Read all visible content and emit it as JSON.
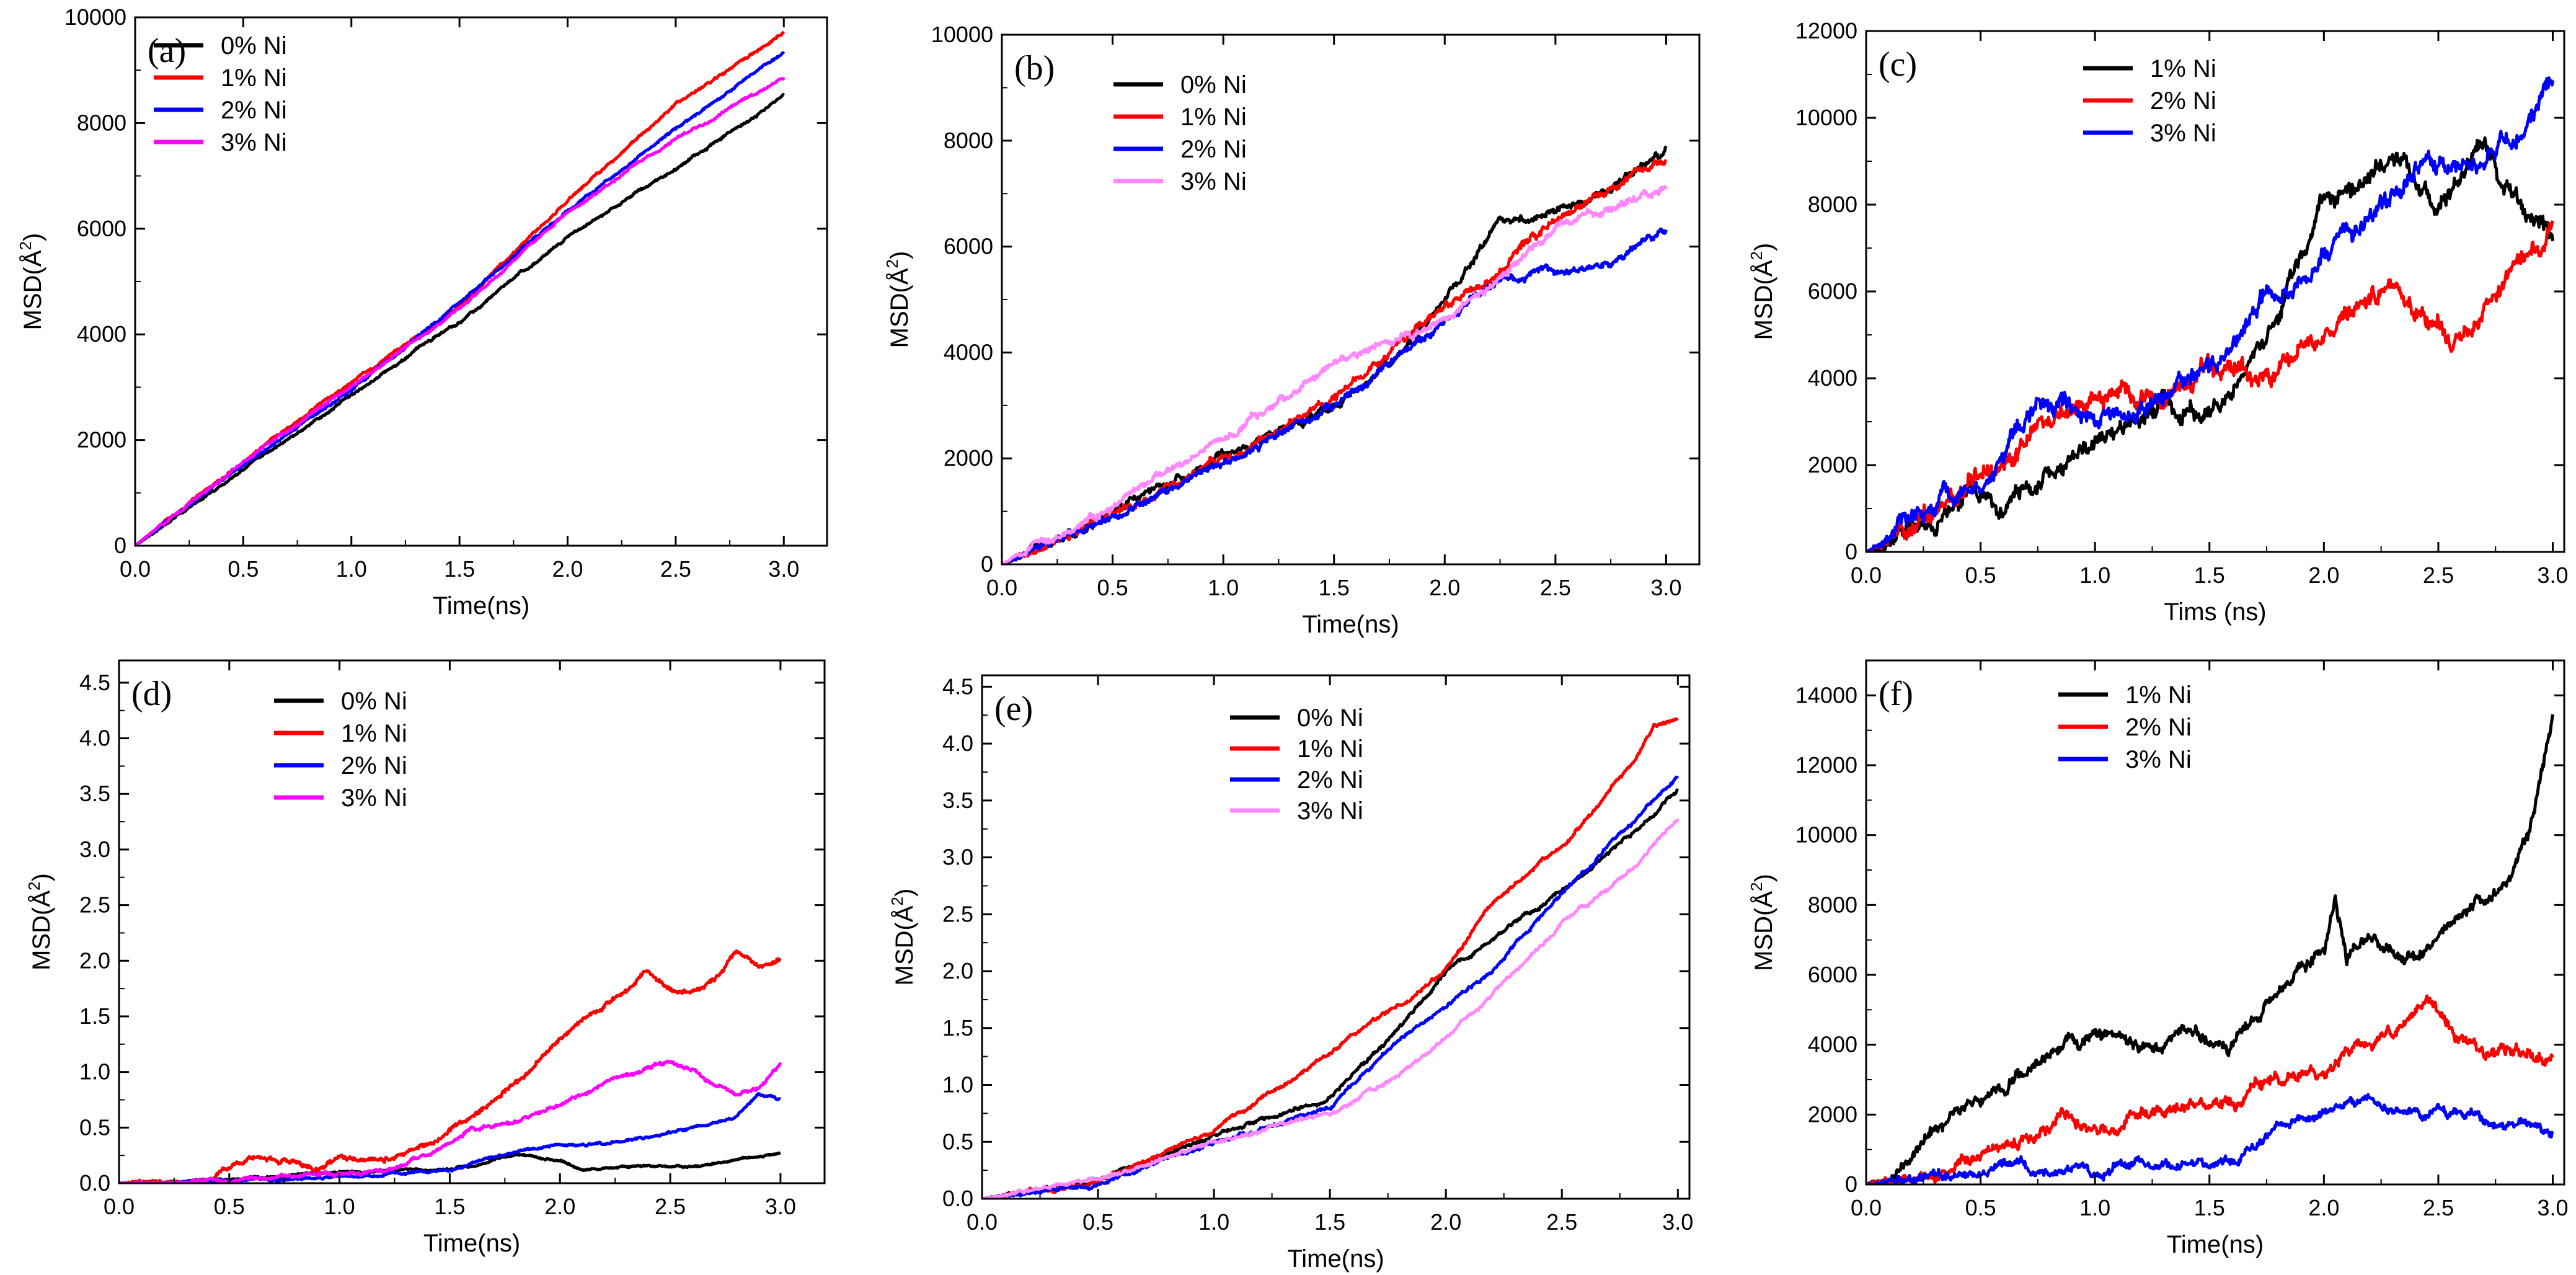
{
  "figure": {
    "panel_count": 6
  },
  "chart_data": [
    {
      "id": "a",
      "type": "line",
      "panel_label": "(a)",
      "xlabel": "Time(ns)",
      "ylabel_base": "MSD(Å",
      "ylabel_sup": "2",
      "ylabel_close": ")",
      "xlim": [
        0,
        3.2
      ],
      "ylim": [
        0,
        10000
      ],
      "xticks": [
        0,
        0.5,
        1,
        1.5,
        2,
        2.5,
        3
      ],
      "xtick_labels": [
        "0.0",
        "0.5",
        "1.0",
        "1.5",
        "2.0",
        "2.5",
        "3.0"
      ],
      "yticks": [
        0,
        2000,
        4000,
        6000,
        8000,
        10000
      ],
      "ytick_labels": [
        "0",
        "2000",
        "4000",
        "6000",
        "8000",
        "10000"
      ],
      "legend_position": "top-left",
      "series": [
        {
          "name": "0% Ni",
          "color": "#000000",
          "noise": 0.004,
          "x": [
            0,
            0.5,
            1.0,
            1.5,
            2.0,
            2.5,
            3.0
          ],
          "y": [
            0,
            1450,
            2850,
            4250,
            5850,
            7150,
            8500
          ]
        },
        {
          "name": "1% Ni",
          "color": "#ff0000",
          "noise": 0.004,
          "x": [
            0,
            0.5,
            1.0,
            1.5,
            2.0,
            2.5,
            3.0
          ],
          "y": [
            0,
            1600,
            3100,
            4500,
            6550,
            8350,
            9700
          ]
        },
        {
          "name": "2% Ni",
          "color": "#0000ff",
          "noise": 0.004,
          "x": [
            0,
            0.5,
            1.0,
            1.5,
            2.0,
            2.5,
            3.0
          ],
          "y": [
            0,
            1550,
            2950,
            4600,
            6350,
            7900,
            9350
          ]
        },
        {
          "name": "3% Ni",
          "color": "#ff00ff",
          "noise": 0.004,
          "x": [
            0,
            0.5,
            1.0,
            1.5,
            2.0,
            2.5,
            3.0
          ],
          "y": [
            0,
            1600,
            3000,
            4500,
            6300,
            7700,
            8850
          ]
        }
      ]
    },
    {
      "id": "b",
      "type": "line",
      "panel_label": "(b)",
      "xlabel": "Time(ns)",
      "ylabel_base": "MSD(Å",
      "ylabel_sup": "2",
      "ylabel_close": ")",
      "xlim": [
        0,
        3.15
      ],
      "ylim": [
        0,
        10000
      ],
      "xticks": [
        0,
        0.5,
        1,
        1.5,
        2,
        2.5,
        3
      ],
      "xtick_labels": [
        "0.0",
        "0.5",
        "1.0",
        "1.5",
        "2.0",
        "2.5",
        "3.0"
      ],
      "yticks": [
        0,
        2000,
        4000,
        6000,
        8000,
        10000
      ],
      "ytick_labels": [
        "0",
        "2000",
        "4000",
        "6000",
        "8000",
        "10000"
      ],
      "legend_position": "top-left",
      "series": [
        {
          "name": "0% Ni",
          "color": "#000000",
          "noise": 0.012,
          "x": [
            0,
            0.5,
            1.0,
            1.5,
            1.8,
            2.0,
            2.25,
            2.5,
            2.75,
            3.0
          ],
          "y": [
            0,
            1000,
            2000,
            3000,
            4000,
            5000,
            6500,
            6600,
            7100,
            7800
          ]
        },
        {
          "name": "1% Ni",
          "color": "#ff0000",
          "noise": 0.012,
          "x": [
            0,
            0.5,
            1.0,
            1.5,
            2.0,
            2.25,
            2.5,
            3.0
          ],
          "y": [
            0,
            900,
            2000,
            3100,
            4900,
            5600,
            6500,
            7600
          ]
        },
        {
          "name": "2% Ni",
          "color": "#0000ff",
          "noise": 0.012,
          "x": [
            0,
            0.5,
            1.0,
            1.5,
            2.0,
            2.25,
            2.5,
            2.75,
            3.0
          ],
          "y": [
            0,
            900,
            1950,
            3000,
            4600,
            5400,
            5500,
            5700,
            6300
          ]
        },
        {
          "name": "3% Ni",
          "color": "#ff88ff",
          "noise": 0.012,
          "x": [
            0,
            0.5,
            1.0,
            1.5,
            2.0,
            2.5,
            3.0
          ],
          "y": [
            0,
            1100,
            2400,
            3800,
            4600,
            6300,
            7200
          ]
        }
      ]
    },
    {
      "id": "c",
      "type": "line",
      "panel_label": "(c)",
      "xlabel": "Tims (ns)",
      "ylabel_base": "MSD(Å",
      "ylabel_sup": "2",
      "ylabel_close": ")",
      "xlim": [
        0,
        3.05
      ],
      "ylim": [
        0,
        12000
      ],
      "xticks": [
        0,
        0.5,
        1,
        1.5,
        2,
        2.5,
        3
      ],
      "xtick_labels": [
        "0.0",
        "0.5",
        "1.0",
        "1.5",
        "2.0",
        "2.5",
        "3.0"
      ],
      "yticks": [
        0,
        2000,
        4000,
        6000,
        8000,
        10000,
        12000
      ],
      "ytick_labels": [
        "0",
        "2000",
        "4000",
        "6000",
        "8000",
        "10000",
        "12000"
      ],
      "legend_position": "top-left",
      "series": [
        {
          "name": "1% Ni",
          "color": "#000000",
          "noise": 0.03,
          "x": [
            0,
            0.3,
            0.45,
            0.6,
            0.8,
            1.0,
            1.3,
            1.5,
            1.8,
            2.0,
            2.3,
            2.5,
            2.7,
            2.85,
            3.0
          ],
          "y": [
            0,
            600,
            1500,
            900,
            1800,
            2500,
            3500,
            3100,
            5500,
            8000,
            9000,
            8000,
            9500,
            8000,
            7000
          ]
        },
        {
          "name": "2% Ni",
          "color": "#ff0000",
          "noise": 0.03,
          "x": [
            0,
            0.3,
            0.5,
            0.8,
            1.0,
            1.3,
            1.5,
            1.8,
            2.0,
            2.3,
            2.5,
            2.6,
            2.8,
            3.0
          ],
          "y": [
            0,
            800,
            1700,
            3000,
            3700,
            3500,
            4300,
            4100,
            5000,
            5900,
            5400,
            4900,
            6100,
            7400
          ]
        },
        {
          "name": "3% Ni",
          "color": "#0000ff",
          "noise": 0.03,
          "x": [
            0,
            0.3,
            0.5,
            0.75,
            0.9,
            1.1,
            1.3,
            1.5,
            1.7,
            2.0,
            2.3,
            2.5,
            2.7,
            2.85,
            3.0
          ],
          "y": [
            0,
            900,
            1700,
            3500,
            3200,
            3300,
            3700,
            4200,
            5600,
            6700,
            8200,
            9100,
            9000,
            9800,
            10900
          ]
        }
      ]
    },
    {
      "id": "d",
      "type": "line",
      "panel_label": "(d)",
      "xlabel": "Time(ns)",
      "ylabel_base": "MSD(Å",
      "ylabel_sup": "2",
      "ylabel_close": ")",
      "xlim": [
        0,
        3.2
      ],
      "ylim": [
        0,
        4.7
      ],
      "xticks": [
        0,
        0.5,
        1,
        1.5,
        2,
        2.5,
        3
      ],
      "xtick_labels": [
        "0.0",
        "0.5",
        "1.0",
        "1.5",
        "2.0",
        "2.5",
        "3.0"
      ],
      "yticks": [
        0,
        0.5,
        1,
        1.5,
        2,
        2.5,
        3,
        3.5,
        4,
        4.5
      ],
      "ytick_labels": [
        "0.0",
        "0.5",
        "1.0",
        "1.5",
        "2.0",
        "2.5",
        "3.0",
        "3.5",
        "4.0",
        "4.5"
      ],
      "legend_position": "top-left",
      "series": [
        {
          "name": "0% Ni",
          "color": "#000000",
          "noise": 0.003,
          "x": [
            0,
            0.5,
            1.0,
            1.5,
            1.8,
            2.0,
            2.1,
            2.3,
            2.6,
            3.0
          ],
          "y": [
            0,
            0.03,
            0.1,
            0.12,
            0.25,
            0.2,
            0.12,
            0.15,
            0.15,
            0.28
          ]
        },
        {
          "name": "1% Ni",
          "color": "#ff0000",
          "noise": 0.008,
          "x": [
            0,
            0.4,
            0.5,
            0.6,
            0.8,
            0.9,
            1.0,
            1.1,
            1.2,
            1.4,
            1.6,
            1.8,
            2.0,
            2.2,
            2.4,
            2.5,
            2.6,
            2.7,
            2.8,
            2.9,
            3.0
          ],
          "y": [
            0,
            0.03,
            0.15,
            0.25,
            0.2,
            0.1,
            0.25,
            0.2,
            0.2,
            0.35,
            0.6,
            0.9,
            1.3,
            1.6,
            1.9,
            1.75,
            1.7,
            1.8,
            2.1,
            1.95,
            2.0
          ]
        },
        {
          "name": "2% Ni",
          "color": "#0000ff",
          "noise": 0.004,
          "x": [
            0,
            0.5,
            1.0,
            1.5,
            1.8,
            2.0,
            2.2,
            2.5,
            2.8,
            2.9,
            3.0
          ],
          "y": [
            0,
            0.02,
            0.05,
            0.12,
            0.3,
            0.35,
            0.35,
            0.45,
            0.6,
            0.8,
            0.75
          ]
        },
        {
          "name": "3% Ni",
          "color": "#ff00ff",
          "noise": 0.006,
          "x": [
            0,
            0.5,
            0.9,
            1.2,
            1.5,
            1.6,
            1.8,
            2.0,
            2.2,
            2.4,
            2.5,
            2.6,
            2.7,
            2.8,
            2.9,
            3.0
          ],
          "y": [
            0,
            0.02,
            0.08,
            0.1,
            0.35,
            0.5,
            0.55,
            0.7,
            0.9,
            1.05,
            1.1,
            1.0,
            0.9,
            0.8,
            0.85,
            1.1
          ]
        }
      ]
    },
    {
      "id": "e",
      "type": "line",
      "panel_label": "(e)",
      "xlabel": "Time(ns)",
      "ylabel_base": "MSD(Å",
      "ylabel_sup": "2",
      "ylabel_close": ")",
      "xlim": [
        0,
        3.05
      ],
      "ylim": [
        0,
        4.6
      ],
      "xticks": [
        0,
        0.5,
        1,
        1.5,
        2,
        2.5,
        3
      ],
      "xtick_labels": [
        "0.0",
        "0.5",
        "1.0",
        "1.5",
        "2.0",
        "2.5",
        "3.0"
      ],
      "yticks": [
        0,
        0.5,
        1,
        1.5,
        2,
        2.5,
        3,
        3.5,
        4,
        4.5
      ],
      "ytick_labels": [
        "0.0",
        "0.5",
        "1.0",
        "1.5",
        "2.0",
        "2.5",
        "3.0",
        "3.5",
        "4.0",
        "4.5"
      ],
      "legend_position": "top-center",
      "series": [
        {
          "name": "0% Ni",
          "color": "#000000",
          "noise": 0.006,
          "x": [
            0,
            0.5,
            1.0,
            1.5,
            1.8,
            2.0,
            2.2,
            2.5,
            2.8,
            3.0
          ],
          "y": [
            0,
            0.15,
            0.55,
            0.9,
            1.5,
            2.0,
            2.3,
            2.7,
            3.2,
            3.6
          ]
        },
        {
          "name": "1% Ni",
          "color": "#ff0000",
          "noise": 0.006,
          "x": [
            0,
            0.5,
            1.0,
            1.5,
            1.8,
            2.0,
            2.2,
            2.5,
            2.8,
            2.9,
            3.0
          ],
          "y": [
            0,
            0.15,
            0.6,
            1.3,
            1.7,
            2.0,
            2.6,
            3.1,
            3.8,
            4.15,
            4.2
          ]
        },
        {
          "name": "2% Ni",
          "color": "#0000ff",
          "noise": 0.006,
          "x": [
            0,
            0.5,
            1.0,
            1.5,
            1.8,
            2.0,
            2.2,
            2.5,
            2.8,
            3.0
          ],
          "y": [
            0,
            0.12,
            0.5,
            0.8,
            1.4,
            1.7,
            2.0,
            2.7,
            3.3,
            3.7
          ]
        },
        {
          "name": "3% Ni",
          "color": "#ff88ff",
          "noise": 0.006,
          "x": [
            0,
            0.5,
            1.0,
            1.5,
            1.8,
            2.0,
            2.2,
            2.5,
            2.8,
            3.0
          ],
          "y": [
            0,
            0.18,
            0.5,
            0.75,
            1.1,
            1.4,
            1.8,
            2.4,
            2.9,
            3.35
          ]
        }
      ]
    },
    {
      "id": "f",
      "type": "line",
      "panel_label": "(f)",
      "xlabel": "Time(ns)",
      "ylabel_base": "MSD(Å",
      "ylabel_sup": "2",
      "ylabel_close": ")",
      "xlim": [
        0,
        3.05
      ],
      "ylim": [
        0,
        15000
      ],
      "xticks": [
        0,
        0.5,
        1,
        1.5,
        2,
        2.5,
        3
      ],
      "xtick_labels": [
        "0.0",
        "0.5",
        "1.0",
        "1.5",
        "2.0",
        "2.5",
        "3.0"
      ],
      "yticks": [
        0,
        2000,
        4000,
        6000,
        8000,
        10000,
        12000,
        14000
      ],
      "ytick_labels": [
        "0",
        "2000",
        "4000",
        "6000",
        "8000",
        "10000",
        "12000",
        "14000"
      ],
      "legend_position": "top-left",
      "series": [
        {
          "name": "1% Ni",
          "color": "#000000",
          "noise": 0.02,
          "x": [
            0,
            0.15,
            0.3,
            0.5,
            0.7,
            0.9,
            1.0,
            1.2,
            1.4,
            1.6,
            1.8,
            2.0,
            2.05,
            2.1,
            2.2,
            2.4,
            2.6,
            2.8,
            2.9,
            3.0
          ],
          "y": [
            0,
            300,
            1500,
            2500,
            3200,
            4000,
            4300,
            3800,
            4500,
            4000,
            5500,
            6800,
            8000,
            6500,
            7000,
            6500,
            7800,
            8500,
            10000,
            13500
          ]
        },
        {
          "name": "2% Ni",
          "color": "#ff0000",
          "noise": 0.02,
          "x": [
            0,
            0.3,
            0.5,
            0.7,
            0.9,
            1.1,
            1.3,
            1.6,
            1.8,
            2.0,
            2.3,
            2.45,
            2.6,
            2.8,
            3.0
          ],
          "y": [
            0,
            400,
            900,
            1300,
            1900,
            1500,
            2400,
            2400,
            3000,
            3200,
            4300,
            5200,
            4200,
            3800,
            3700
          ]
        },
        {
          "name": "3% Ni",
          "color": "#0000ff",
          "noise": 0.015,
          "x": [
            0,
            0.5,
            0.6,
            0.8,
            1.0,
            1.2,
            1.5,
            1.7,
            1.8,
            2.0,
            2.1,
            2.3,
            2.5,
            2.7,
            2.9,
            3.0
          ],
          "y": [
            0,
            300,
            700,
            400,
            400,
            600,
            500,
            1000,
            1700,
            1800,
            2400,
            2100,
            2100,
            1800,
            1800,
            1300
          ]
        }
      ]
    }
  ]
}
